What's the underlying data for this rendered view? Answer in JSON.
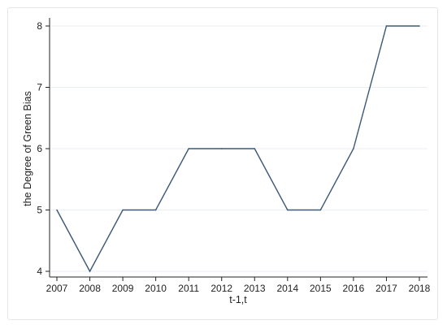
{
  "chart_data": {
    "type": "line",
    "title": "",
    "xlabel": "t-1,t",
    "ylabel": "the Degree of Green Bias",
    "x": [
      2007,
      2008,
      2009,
      2010,
      2011,
      2012,
      2013,
      2014,
      2015,
      2016,
      2017,
      2018
    ],
    "series": [
      {
        "values": [
          5,
          4,
          5,
          5,
          6,
          6,
          6,
          5,
          5,
          6,
          8,
          8
        ]
      }
    ],
    "xlim": [
      2007,
      2018
    ],
    "ylim": [
      4,
      8
    ],
    "yticks": [
      4,
      5,
      6,
      7,
      8
    ],
    "xticks": [
      2007,
      2008,
      2009,
      2010,
      2011,
      2012,
      2013,
      2014,
      2015,
      2016,
      2017,
      2018
    ],
    "grid": true,
    "legend": "none",
    "colors": {
      "line": "#3b5877",
      "grid": "#e8eef3",
      "axis": "#222222"
    }
  }
}
